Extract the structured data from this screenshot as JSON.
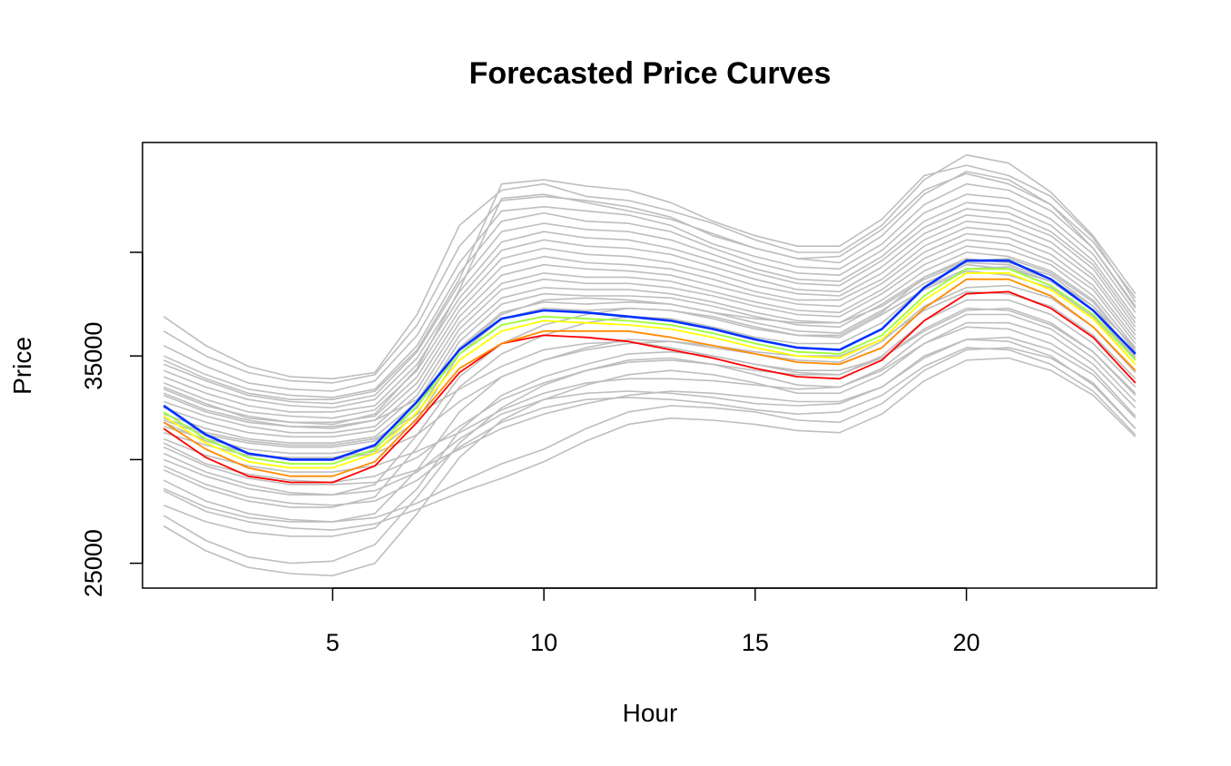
{
  "chart_data": {
    "type": "line",
    "title": "Forecasted Price Curves",
    "xlabel": "Hour",
    "ylabel": "Price",
    "x": [
      1,
      2,
      3,
      4,
      5,
      6,
      7,
      8,
      9,
      10,
      11,
      12,
      13,
      14,
      15,
      16,
      17,
      18,
      19,
      20,
      21,
      22,
      23,
      24
    ],
    "xlim": [
      0.5,
      24.5
    ],
    "ylim": [
      23800,
      45300
    ],
    "x_ticks": [
      5,
      10,
      15,
      20
    ],
    "x_tick_labels": [
      "5",
      "10",
      "15",
      "20"
    ],
    "y_ticks": [
      25000,
      30000,
      35000,
      40000
    ],
    "y_tick_labels": [
      "25000",
      "",
      "35000",
      ""
    ],
    "grid": false,
    "legend": "none",
    "colors": {
      "background_curves": "#bebebe",
      "highlight": [
        "#ff0000",
        "#ff8c00",
        "#ffff00",
        "#9aff32",
        "#0032ff"
      ]
    },
    "background_series": [
      {
        "values": [
          36900,
          35500,
          34500,
          34000,
          33900,
          34200,
          37000,
          41300,
          43000,
          43300,
          42700,
          42500,
          42000,
          41400,
          40600,
          40000,
          40000,
          41300,
          43500,
          44700,
          44300,
          42900,
          40800,
          38000
        ]
      },
      {
        "values": [
          36200,
          35000,
          34200,
          33800,
          33700,
          34100,
          36500,
          40300,
          42500,
          42700,
          42500,
          42200,
          41700,
          40800,
          40200,
          39700,
          39500,
          40800,
          42800,
          43900,
          43500,
          42300,
          40500,
          37800
        ]
      },
      {
        "values": [
          35500,
          34500,
          33700,
          33400,
          33300,
          33800,
          36000,
          39500,
          42000,
          42200,
          42000,
          41800,
          41300,
          40400,
          39800,
          39300,
          39200,
          40400,
          42300,
          43300,
          43000,
          42000,
          40200,
          37400
        ]
      },
      {
        "values": [
          35000,
          34100,
          33400,
          33100,
          33000,
          33400,
          35500,
          39000,
          41500,
          41900,
          41500,
          41400,
          41000,
          40200,
          39500,
          39000,
          38900,
          40100,
          41900,
          42800,
          42600,
          41600,
          39900,
          37100
        ]
      },
      {
        "values": [
          34600,
          33800,
          33100,
          32800,
          32700,
          33100,
          35200,
          38500,
          41000,
          41400,
          41100,
          41000,
          40600,
          39900,
          39200,
          38700,
          38600,
          39800,
          41500,
          42400,
          42200,
          41300,
          39600,
          36800
        ]
      },
      {
        "values": [
          34300,
          33500,
          32900,
          32600,
          32500,
          32900,
          34900,
          38100,
          40500,
          41000,
          40700,
          40600,
          40200,
          39600,
          39000,
          38500,
          38400,
          39600,
          41200,
          42100,
          41900,
          41000,
          39400,
          36600
        ]
      },
      {
        "values": [
          34000,
          33200,
          32600,
          32300,
          32300,
          32600,
          34600,
          37800,
          40100,
          40600,
          40300,
          40200,
          39900,
          39300,
          38700,
          38200,
          38100,
          39300,
          40900,
          41800,
          41600,
          40800,
          39200,
          36400
        ]
      },
      {
        "values": [
          33700,
          32900,
          32300,
          32100,
          32000,
          32400,
          34300,
          37500,
          39700,
          40200,
          39900,
          39800,
          39500,
          39000,
          38400,
          38000,
          37900,
          39000,
          40600,
          41500,
          41300,
          40500,
          38900,
          36200
        ]
      },
      {
        "values": [
          33400,
          32600,
          32100,
          31800,
          31800,
          32100,
          34000,
          37200,
          39300,
          39800,
          39500,
          39400,
          39200,
          38700,
          38100,
          37700,
          37700,
          38700,
          40300,
          41200,
          41000,
          40200,
          38700,
          36000
        ]
      },
      {
        "values": [
          33100,
          32300,
          31800,
          31600,
          31500,
          31900,
          33700,
          36900,
          38900,
          39400,
          39200,
          39100,
          38900,
          38400,
          37900,
          37500,
          37400,
          38500,
          40000,
          40900,
          40700,
          39900,
          38400,
          35800
        ]
      },
      {
        "values": [
          32800,
          32100,
          31600,
          31300,
          31300,
          31600,
          33400,
          36600,
          38500,
          39000,
          38800,
          38800,
          38600,
          38100,
          37600,
          37200,
          37100,
          38200,
          39700,
          40600,
          40400,
          39600,
          38200,
          35600
        ]
      },
      {
        "values": [
          32500,
          31800,
          31300,
          31100,
          31100,
          31400,
          33100,
          36300,
          38200,
          38700,
          38500,
          38500,
          38300,
          37900,
          37400,
          37000,
          36900,
          38000,
          39400,
          40300,
          40100,
          39400,
          37900,
          35400
        ]
      },
      {
        "values": [
          32200,
          31500,
          31000,
          30800,
          30800,
          31100,
          32800,
          36000,
          37800,
          38300,
          38200,
          38200,
          38000,
          37600,
          37100,
          36700,
          36600,
          37700,
          39100,
          40000,
          39800,
          39100,
          37700,
          35200
        ]
      },
      {
        "values": [
          31900,
          31200,
          30800,
          30600,
          30600,
          30900,
          32500,
          35700,
          37500,
          38000,
          37900,
          37900,
          37800,
          37400,
          36900,
          36500,
          36400,
          37500,
          38800,
          39700,
          39500,
          38900,
          37400,
          35000
        ]
      },
      {
        "values": [
          31600,
          31000,
          30500,
          30300,
          30300,
          30600,
          32200,
          35400,
          37100,
          37600,
          37500,
          37600,
          37500,
          37100,
          36600,
          36200,
          36100,
          37200,
          38500,
          39400,
          39200,
          38600,
          37200,
          34800
        ]
      },
      {
        "values": [
          31300,
          30700,
          30200,
          30100,
          30100,
          30400,
          31900,
          35100,
          36800,
          37300,
          37200,
          37300,
          37200,
          36900,
          36400,
          36000,
          35900,
          37000,
          38200,
          39100,
          38900,
          38300,
          36900,
          34600
        ]
      },
      {
        "values": [
          34800,
          33900,
          33200,
          32900,
          32900,
          33300,
          35300,
          38700,
          43300,
          43500,
          43200,
          43000,
          42400,
          41500,
          40800,
          40300,
          40300,
          41600,
          43700,
          44200,
          43700,
          42700,
          40700,
          37600
        ]
      },
      {
        "values": [
          33500,
          32700,
          32000,
          31800,
          31700,
          32200,
          34400,
          38200,
          42600,
          42800,
          42400,
          42000,
          41600,
          40900,
          40200,
          39700,
          39800,
          41100,
          43000,
          43800,
          43300,
          42300,
          40200,
          37300
        ]
      },
      {
        "values": [
          30000,
          29200,
          28600,
          28300,
          28300,
          28800,
          31200,
          34000,
          35600,
          36500,
          37000,
          37300,
          37200,
          36800,
          36300,
          36000,
          36000,
          37100,
          38800,
          39600,
          39700,
          39000,
          37600,
          35300
        ]
      },
      {
        "values": [
          29500,
          28600,
          28000,
          27700,
          27700,
          28200,
          30600,
          33500,
          35100,
          36000,
          36600,
          36900,
          36800,
          36400,
          35900,
          35600,
          35600,
          36600,
          38300,
          39200,
          39300,
          38600,
          37200,
          34900
        ]
      },
      {
        "values": [
          28600,
          27700,
          27200,
          27000,
          27000,
          27400,
          29500,
          32300,
          34000,
          34800,
          35400,
          35800,
          35700,
          35400,
          35100,
          34800,
          34700,
          35700,
          37400,
          38300,
          38400,
          37800,
          36400,
          34200
        ]
      },
      {
        "values": [
          27800,
          27000,
          26500,
          26300,
          26300,
          26700,
          28600,
          31400,
          33100,
          34000,
          34600,
          35100,
          35200,
          35000,
          34600,
          34200,
          34100,
          35000,
          36700,
          37700,
          37700,
          37000,
          35600,
          33500
        ]
      },
      {
        "values": [
          27300,
          26100,
          25300,
          25000,
          25100,
          25900,
          28200,
          30800,
          32500,
          33600,
          34300,
          34800,
          34900,
          34600,
          34100,
          33600,
          33500,
          34400,
          36000,
          37000,
          37000,
          36300,
          34900,
          32800
        ]
      },
      {
        "values": [
          26800,
          25600,
          24800,
          24500,
          24400,
          25000,
          27400,
          30100,
          31900,
          32900,
          33600,
          34100,
          34300,
          34100,
          33700,
          33200,
          33200,
          34100,
          35600,
          36600,
          36600,
          36000,
          34600,
          32500
        ]
      },
      {
        "values": [
          32000,
          31300,
          30900,
          30700,
          30700,
          31000,
          32200,
          33400,
          34500,
          35300,
          35600,
          35700,
          35400,
          35000,
          34600,
          34300,
          34300,
          34900,
          36200,
          37200,
          37300,
          36600,
          35200,
          33100
        ]
      },
      {
        "values": [
          30600,
          29700,
          29100,
          28800,
          28800,
          28900,
          29500,
          30500,
          31500,
          32200,
          32700,
          33100,
          33300,
          33200,
          33000,
          32800,
          32800,
          33500,
          34900,
          35800,
          35900,
          35300,
          34100,
          32000
        ]
      },
      {
        "values": [
          29000,
          28000,
          27400,
          27100,
          27000,
          27200,
          27900,
          28900,
          29800,
          30500,
          31500,
          32300,
          32600,
          32500,
          32300,
          31900,
          31800,
          32700,
          34300,
          35300,
          35400,
          34900,
          33700,
          31500
        ]
      },
      {
        "values": [
          28500,
          27500,
          27000,
          26700,
          26600,
          26900,
          27600,
          28400,
          29100,
          29900,
          30900,
          31700,
          32000,
          31900,
          31700,
          31400,
          31300,
          32200,
          33800,
          34800,
          34900,
          34300,
          33100,
          31100
        ]
      },
      {
        "values": [
          30300,
          29400,
          28800,
          28400,
          28300,
          28500,
          29400,
          31000,
          32200,
          32900,
          33200,
          33300,
          33200,
          33000,
          32700,
          32600,
          32700,
          33500,
          35000,
          35800,
          35700,
          35000,
          33600,
          31500
        ]
      },
      {
        "values": [
          29700,
          28800,
          28200,
          27900,
          27800,
          28000,
          29000,
          30600,
          31800,
          32500,
          32900,
          33000,
          32900,
          32700,
          32400,
          32200,
          32300,
          33100,
          34500,
          35400,
          35300,
          34600,
          33300,
          31200
        ]
      },
      {
        "values": [
          31000,
          30200,
          29700,
          29400,
          29400,
          29700,
          30400,
          31300,
          32400,
          33200,
          33700,
          33900,
          33900,
          33800,
          33600,
          33400,
          33500,
          34300,
          35600,
          36400,
          36300,
          35600,
          34300,
          32100
        ]
      },
      {
        "values": [
          33200,
          32400,
          31900,
          31600,
          31600,
          31900,
          32900,
          35300,
          37000,
          37700,
          37800,
          37700,
          37500,
          37100,
          36800,
          36600,
          36600,
          37400,
          38700,
          39500,
          39400,
          38700,
          37400,
          35400
        ]
      },
      {
        "values": [
          31800,
          30900,
          30300,
          30000,
          30000,
          30300,
          31200,
          32800,
          34000,
          34800,
          35300,
          35600,
          35700,
          35500,
          35200,
          35000,
          35000,
          35800,
          37200,
          38100,
          38000,
          37400,
          36000,
          33900
        ]
      },
      {
        "values": [
          30800,
          29800,
          29300,
          29000,
          28900,
          29200,
          30100,
          31600,
          32900,
          33700,
          34300,
          34700,
          34800,
          34600,
          34300,
          34100,
          34100,
          34900,
          36300,
          37300,
          37200,
          36500,
          35200,
          33200
        ]
      }
    ],
    "series": [
      {
        "values": [
          31500,
          30100,
          29200,
          28900,
          28900,
          29700,
          31800,
          34200,
          35600,
          36000,
          35900,
          35700,
          35300,
          34900,
          34400,
          34000,
          33900,
          34800,
          36700,
          38000,
          38100,
          37300,
          35900,
          33700
        ]
      },
      {
        "values": [
          31800,
          30500,
          29600,
          29200,
          29200,
          29900,
          32000,
          34400,
          35600,
          36200,
          36200,
          36200,
          35900,
          35500,
          35100,
          34700,
          34600,
          35400,
          37300,
          38700,
          38700,
          37900,
          36400,
          34300
        ]
      },
      {
        "values": [
          32100,
          30800,
          29900,
          29600,
          29600,
          30300,
          32300,
          34800,
          36200,
          36700,
          36600,
          36500,
          36300,
          35900,
          35400,
          35000,
          34900,
          35800,
          37700,
          39000,
          39000,
          38200,
          36800,
          34600
        ]
      },
      {
        "values": [
          32300,
          31000,
          30100,
          29800,
          29800,
          30500,
          32600,
          35100,
          36500,
          36900,
          36800,
          36700,
          36500,
          36100,
          35600,
          35200,
          35100,
          36000,
          37900,
          39200,
          39200,
          38400,
          37000,
          34800
        ]
      },
      {
        "values": [
          32600,
          31200,
          30300,
          30000,
          30000,
          30700,
          32800,
          35300,
          36800,
          37200,
          37100,
          36900,
          36700,
          36300,
          35800,
          35400,
          35300,
          36300,
          38300,
          39600,
          39600,
          38700,
          37200,
          35100
        ]
      }
    ]
  }
}
